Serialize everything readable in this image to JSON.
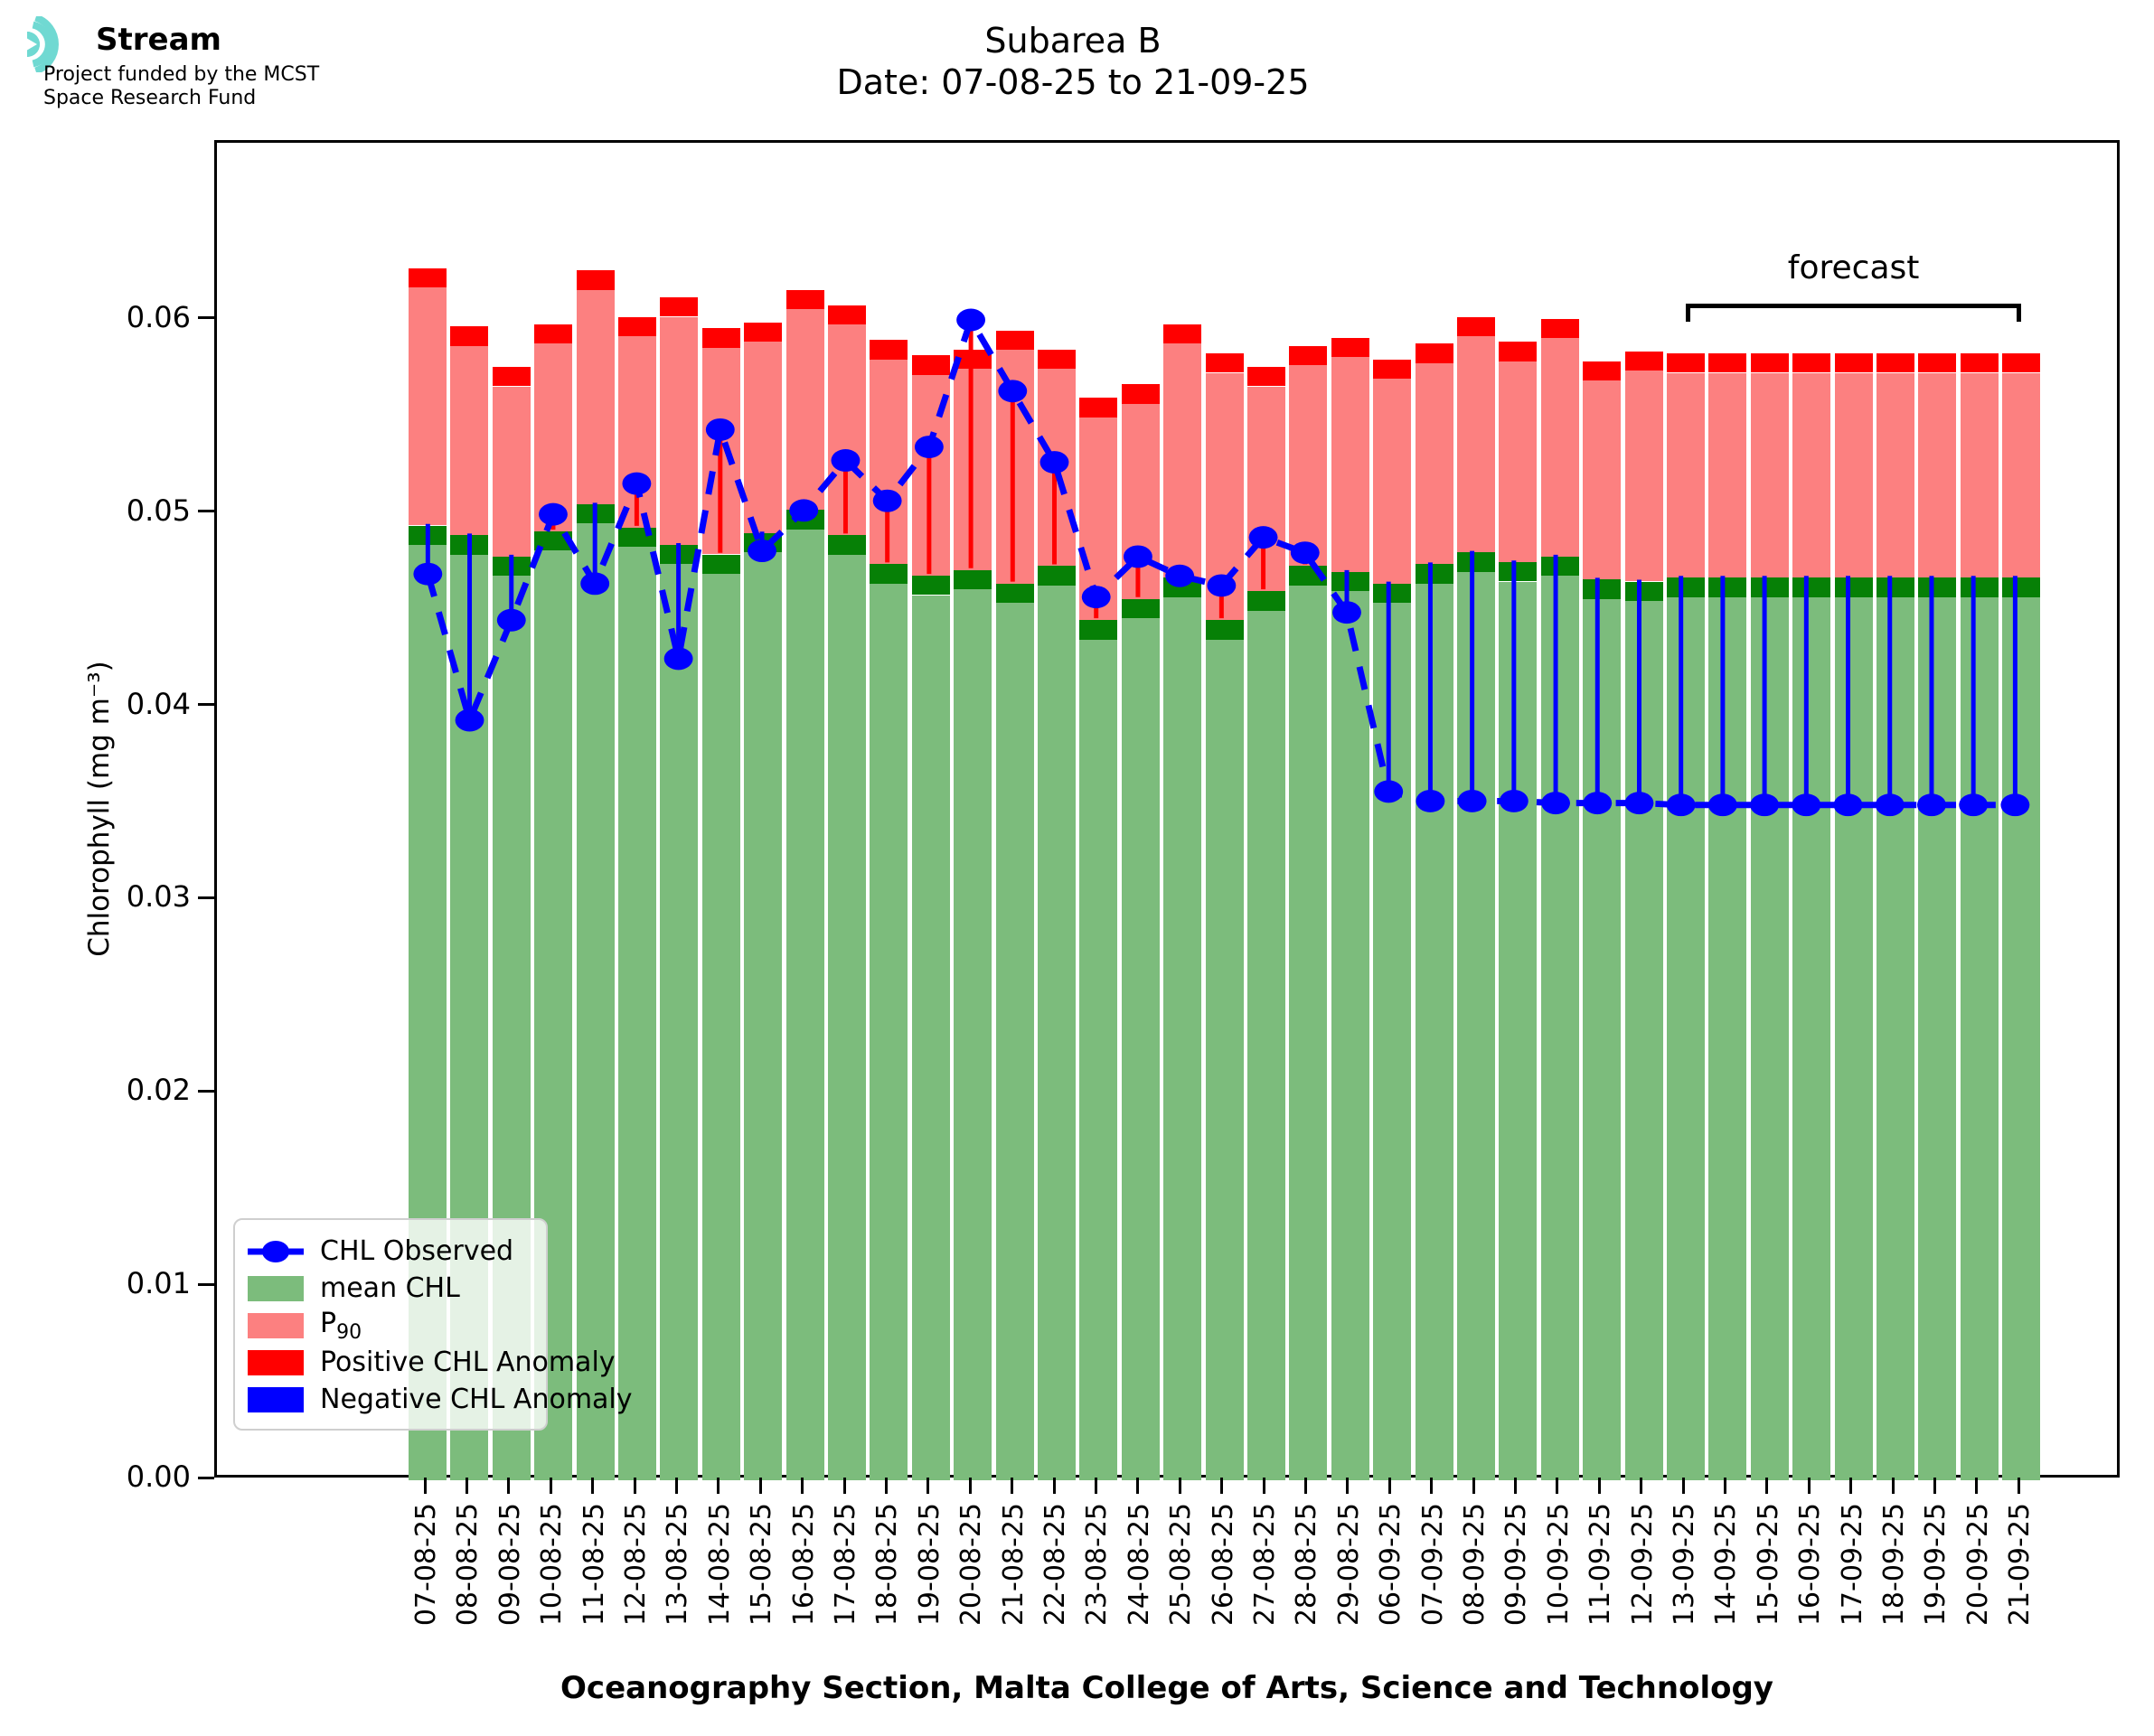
{
  "logo": {
    "brand": "Stream",
    "subtitle_line1": "Project funded by the MCST",
    "subtitle_line2": "Space Research Fund",
    "icon_color": "#70d9d2"
  },
  "title": {
    "line1": "Subarea B",
    "line2": "Date: 07-08-25 to 21-09-25"
  },
  "y_axis": {
    "label": "Chlorophyll (mg m⁻³)",
    "tick_labels": [
      "0.00",
      "0.01",
      "0.02",
      "0.03",
      "0.04",
      "0.05",
      "0.06"
    ]
  },
  "x_axis": {
    "caption": "Oceanography Section, Malta College of Arts, Science and Technology"
  },
  "forecast_label": "forecast",
  "legend": {
    "items": [
      {
        "kind": "line-marker",
        "label": "CHL Observed",
        "color": "#0000ff"
      },
      {
        "kind": "patch",
        "label": "mean CHL",
        "color": "#7cbc7c"
      },
      {
        "kind": "patch",
        "label": "P",
        "sub": "90",
        "color": "#fc8080"
      },
      {
        "kind": "patch",
        "label": "Positive CHL Anomaly",
        "color": "#ff0000"
      },
      {
        "kind": "patch",
        "label": "Negative CHL Anomaly",
        "color": "#0000ff"
      }
    ]
  },
  "colors": {
    "mean_bar": "#7cbc7c",
    "mean_cap": "#068006",
    "p90_bar": "#fc8080",
    "p90_cap": "#ff0000",
    "observed": "#0000ff",
    "positive_anomaly": "#ff0000",
    "negative_anomaly": "#0000ff"
  },
  "chart_data": {
    "type": "bar",
    "title": "Subarea B",
    "subtitle": "Date: 07-08-25 to 21-09-25",
    "ylabel": "Chlorophyll (mg m⁻³)",
    "xlabel": "Oceanography Section, Malta College of Arts, Science and Technology",
    "ylim": [
      0,
      0.0692
    ],
    "yticks": [
      0,
      0.01,
      0.02,
      0.03,
      0.04,
      0.05,
      0.06
    ],
    "grid": false,
    "legend_position": "lower left",
    "cap_thickness": 0.001,
    "categories": [
      "07-08-25",
      "08-08-25",
      "09-08-25",
      "10-08-25",
      "11-08-25",
      "12-08-25",
      "13-08-25",
      "14-08-25",
      "15-08-25",
      "16-08-25",
      "17-08-25",
      "18-08-25",
      "19-08-25",
      "20-08-25",
      "21-08-25",
      "22-08-25",
      "23-08-25",
      "24-08-25",
      "25-08-25",
      "26-08-25",
      "27-08-25",
      "28-08-25",
      "29-08-25",
      "06-09-25",
      "07-09-25",
      "08-09-25",
      "09-09-25",
      "10-09-25",
      "11-09-25",
      "12-09-25",
      "13-09-25",
      "14-09-25",
      "15-09-25",
      "16-09-25",
      "17-09-25",
      "18-09-25",
      "19-09-25",
      "20-09-25",
      "21-09-25"
    ],
    "series": [
      {
        "name": "mean CHL",
        "type": "bar",
        "values": [
          0.0494,
          0.0489,
          0.0478,
          0.0491,
          0.0505,
          0.0493,
          0.0484,
          0.0479,
          0.049,
          0.0502,
          0.0489,
          0.0474,
          0.0468,
          0.0471,
          0.0464,
          0.0473,
          0.0445,
          0.0456,
          0.0467,
          0.0445,
          0.046,
          0.0473,
          0.047,
          0.0464,
          0.0474,
          0.048,
          0.0475,
          0.0478,
          0.0466,
          0.0465,
          0.0467,
          0.0467,
          0.0467,
          0.0467,
          0.0467,
          0.0467,
          0.0467,
          0.0467,
          0.0467
        ]
      },
      {
        "name": "P90",
        "type": "bar",
        "values": [
          0.0627,
          0.0597,
          0.0576,
          0.0598,
          0.0626,
          0.0602,
          0.0612,
          0.0596,
          0.0599,
          0.0616,
          0.0608,
          0.059,
          0.0582,
          0.0585,
          0.0595,
          0.0585,
          0.056,
          0.0567,
          0.0598,
          0.0583,
          0.0576,
          0.0587,
          0.0591,
          0.058,
          0.0588,
          0.0602,
          0.0589,
          0.0601,
          0.0579,
          0.0584,
          0.0583,
          0.0583,
          0.0583,
          0.0583,
          0.0583,
          0.0583,
          0.0583,
          0.0583,
          0.0583
        ]
      },
      {
        "name": "CHL Observed",
        "type": "line",
        "values": [
          0.0468,
          0.0392,
          0.0444,
          0.0499,
          0.0463,
          0.0515,
          0.0424,
          0.0543,
          0.048,
          0.0501,
          0.0527,
          0.0506,
          0.0534,
          0.06,
          0.0563,
          0.0526,
          0.0456,
          0.0477,
          0.0467,
          0.0462,
          0.0487,
          0.0479,
          0.0448,
          0.0355,
          0.035,
          0.035,
          0.035,
          0.0349,
          0.0349,
          0.0349,
          0.0348,
          0.0348,
          0.0348,
          0.0348,
          0.0348,
          0.0348,
          0.0348,
          0.0348,
          0.0348
        ]
      }
    ],
    "forecast": {
      "label": "forecast",
      "start": "13-09-25",
      "end": "21-09-25"
    }
  }
}
